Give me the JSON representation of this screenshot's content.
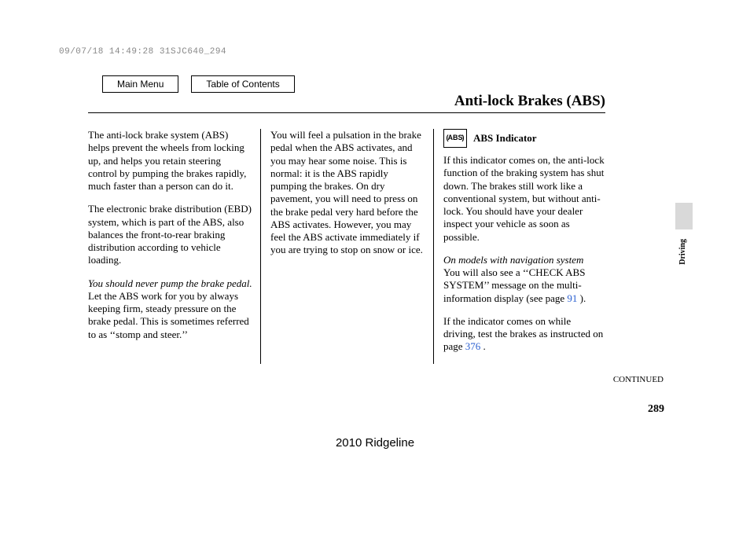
{
  "stamp": "09/07/18 14:49:28 31SJC640_294",
  "nav": {
    "main_menu": "Main Menu",
    "toc": "Table of Contents"
  },
  "title": "Anti-lock Brakes (ABS)",
  "col1": {
    "p1": "The anti-lock brake system (ABS) helps prevent the wheels from locking up, and helps you retain steering control by pumping the brakes rapidly, much faster than a person can do it.",
    "p2": "The electronic brake distribution (EBD) system, which is part of the ABS, also balances the front-to-rear braking distribution according to vehicle loading.",
    "p3_italic": "You should never pump the brake pedal.",
    "p3_rest": " Let the ABS work for you by always keeping firm, steady pressure on the brake pedal. This is sometimes referred to as ‘‘stomp and steer.’’"
  },
  "col2": {
    "p1": "You will feel a pulsation in the brake pedal when the ABS activates, and you may hear some noise. This is normal: it is the ABS rapidly pumping the brakes. On dry pavement, you will need to press on the brake pedal very hard before the ABS activates. However, you may feel the ABS activate immediately if you are trying to stop on snow or ice."
  },
  "col3": {
    "icon_text": "ABS",
    "heading": "ABS Indicator",
    "p1": "If this indicator comes on, the anti-lock function of the braking system has shut down. The brakes still work like a conventional system, but without anti-lock. You should have your dealer inspect your vehicle as soon as possible.",
    "note_italic": "On models with navigation system",
    "p2a": "You will also see a ‘‘CHECK ABS SYSTEM’’ message on the multi-information display (see page ",
    "link1": "91",
    "p2b": " ).",
    "p3a": "If the indicator comes on while driving, test the brakes as instructed on page ",
    "link2": "376",
    "p3b": " ."
  },
  "section_tab": "Driving",
  "continued": "CONTINUED",
  "page_number": "289",
  "model_year": "2010 Ridgeline"
}
